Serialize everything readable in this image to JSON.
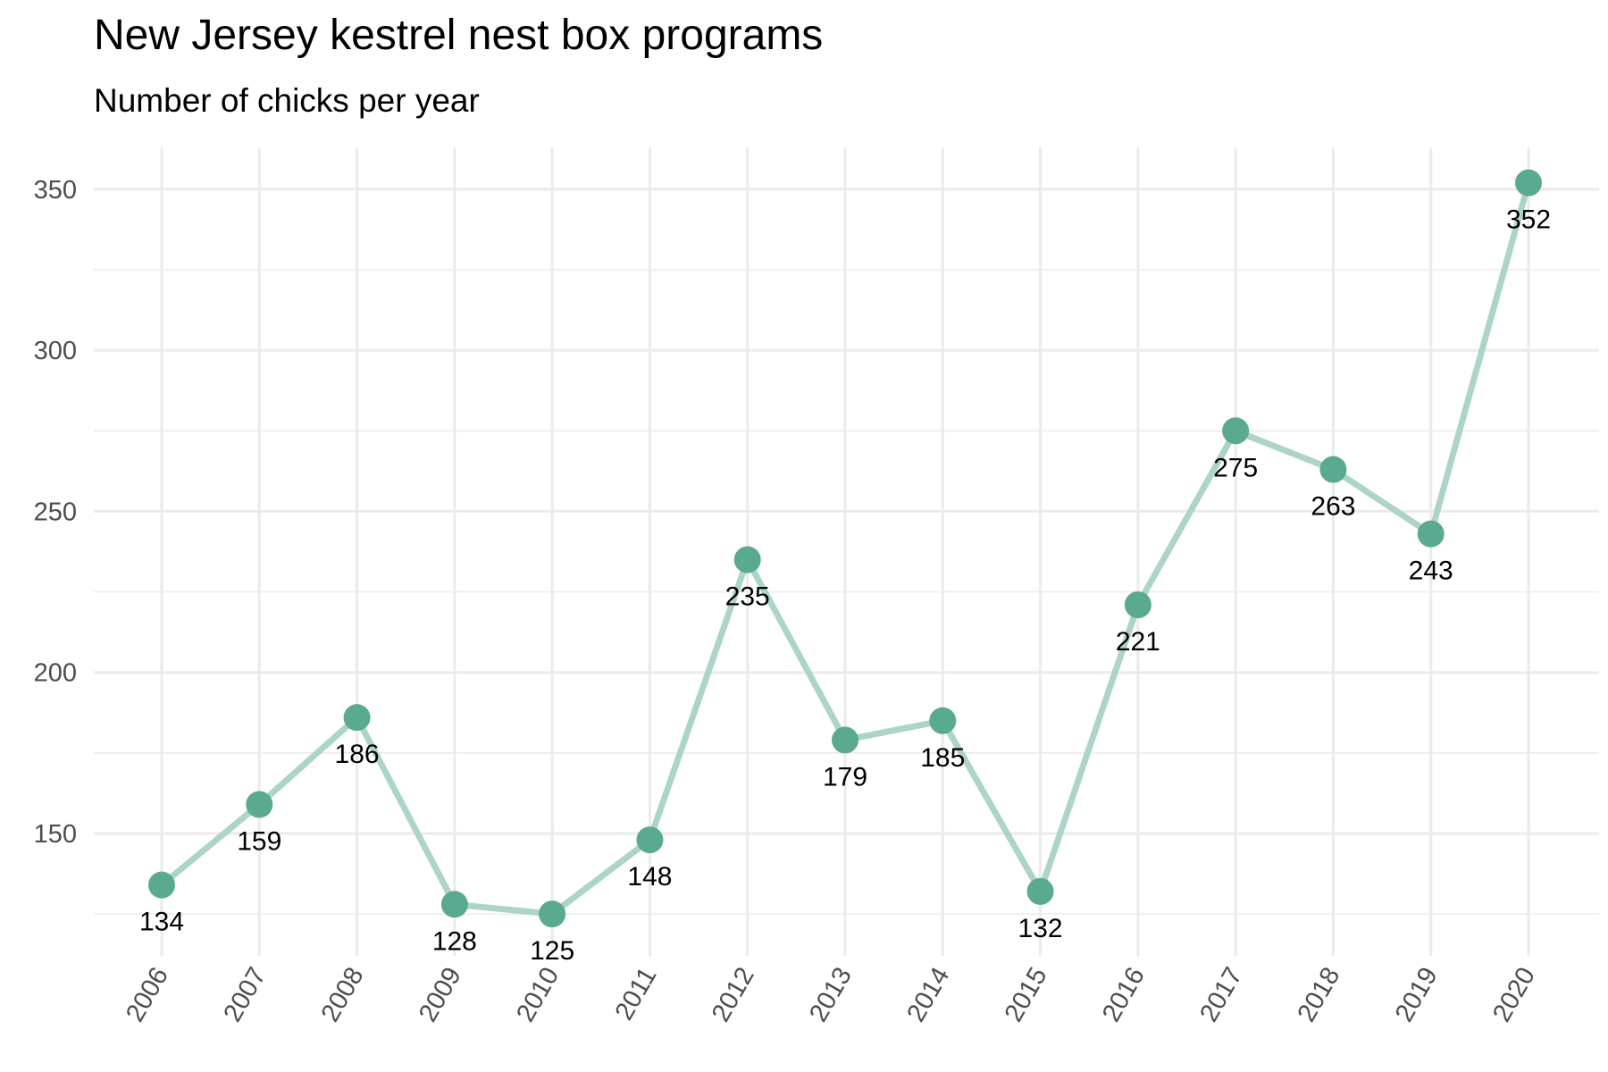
{
  "chart_data": {
    "type": "line",
    "title": "New Jersey kestrel nest box programs",
    "subtitle": "Number of chicks per year",
    "xlabel": "",
    "ylabel": "",
    "x": [
      "2006",
      "2007",
      "2008",
      "2009",
      "2010",
      "2011",
      "2012",
      "2013",
      "2014",
      "2015",
      "2016",
      "2017",
      "2018",
      "2019",
      "2020"
    ],
    "values": [
      134,
      159,
      186,
      128,
      125,
      148,
      235,
      179,
      185,
      132,
      221,
      275,
      263,
      243,
      352
    ],
    "y_ticks": [
      "150",
      "200",
      "250",
      "300",
      "350"
    ],
    "ylim": [
      112,
      363
    ],
    "grid": true,
    "legend": "none",
    "colors": {
      "point": "#5aa991",
      "line": "#acd4c8",
      "grid": "#ebebeb"
    }
  }
}
